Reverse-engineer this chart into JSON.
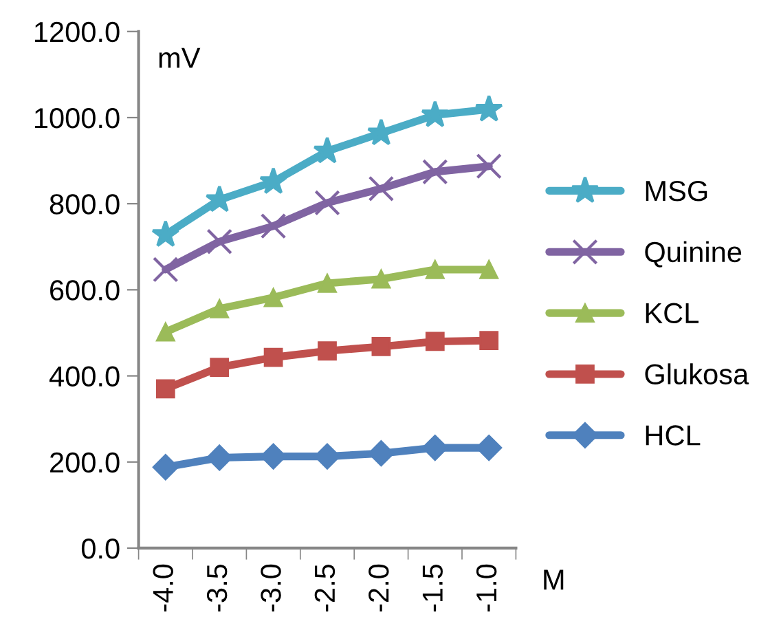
{
  "chart_data": {
    "type": "line",
    "xlabel": "M",
    "ylabel": "mV",
    "categories": [
      "-4.0",
      "-3.5",
      "-3.0",
      "-2.5",
      "-2.0",
      "-1.5",
      "-1.0"
    ],
    "series": [
      {
        "name": "MSG",
        "color": "#4bacc6",
        "marker": "star",
        "values": [
          728,
          809,
          851,
          922,
          964,
          1006,
          1019
        ]
      },
      {
        "name": "Quinine",
        "color": "#8064a2",
        "marker": "cross",
        "values": [
          647,
          712,
          748,
          802,
          835,
          874,
          887
        ]
      },
      {
        "name": "KCL",
        "color": "#9bbb59",
        "marker": "triangle",
        "values": [
          502,
          556,
          582,
          615,
          625,
          647,
          647
        ]
      },
      {
        "name": "Glukosa",
        "color": "#c0504d",
        "marker": "square",
        "values": [
          370,
          420,
          443,
          458,
          468,
          480,
          482
        ]
      },
      {
        "name": "HCL",
        "color": "#4f81bd",
        "marker": "diamond",
        "values": [
          188,
          210,
          213,
          213,
          220,
          233,
          233
        ]
      }
    ],
    "ylim": [
      0,
      1200
    ],
    "yticks": [
      {
        "value": 0,
        "label": "0.0"
      },
      {
        "value": 200,
        "label": "200.0"
      },
      {
        "value": 400,
        "label": "400.0"
      },
      {
        "value": 600,
        "label": "600.0"
      },
      {
        "value": 800,
        "label": "800.0"
      },
      {
        "value": 1000,
        "label": "1000.0"
      },
      {
        "value": 1200,
        "label": "1200.0"
      }
    ],
    "grid": false,
    "legend": "right",
    "line_style": "solid"
  }
}
